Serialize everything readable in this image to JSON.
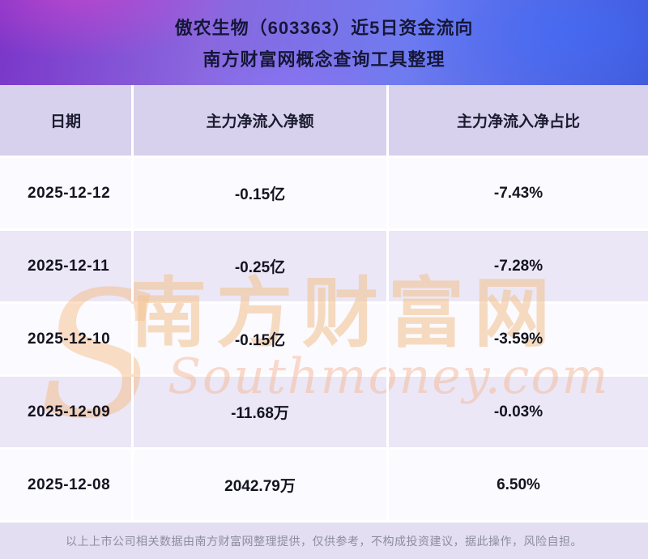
{
  "header": {
    "title_line1": "傲农生物（603363）近5日资金流向",
    "title_line2": "南方财富网概念查询工具整理"
  },
  "chart_data": {
    "type": "table",
    "title": "傲农生物（603363）近5日资金流向",
    "subtitle": "南方财富网概念查询工具整理",
    "columns": [
      "日期",
      "主力净流入净额",
      "主力净流入净占比"
    ],
    "rows": [
      {
        "date": "2025-12-12",
        "amount": "-0.15亿",
        "pct": "-7.43%"
      },
      {
        "date": "2025-12-11",
        "amount": "-0.25亿",
        "pct": "-7.28%"
      },
      {
        "date": "2025-12-10",
        "amount": "-0.15亿",
        "pct": "-3.59%"
      },
      {
        "date": "2025-12-09",
        "amount": "-11.68万",
        "pct": "-0.03%"
      },
      {
        "date": "2025-12-08",
        "amount": "2042.79万",
        "pct": "6.50%"
      }
    ]
  },
  "watermark": {
    "symbol": "S",
    "cn": "南方财富网",
    "en": "Southmoney.com"
  },
  "footer": {
    "disclaimer": "以上上市公司相关数据由南方财富网整理提供，仅供参考，不构成投资建议，据此操作，风险自担。"
  },
  "colors": {
    "banner_gradient_left": "#7a35c8",
    "banner_gradient_right": "#4257d6",
    "table_header_bg": "#d7d1ee",
    "row_light": "#fbfaff",
    "row_alt": "#ebe7f6",
    "footer_bg": "#e3def1",
    "watermark_orange": "#f2c494",
    "title_text": "#15163a"
  }
}
